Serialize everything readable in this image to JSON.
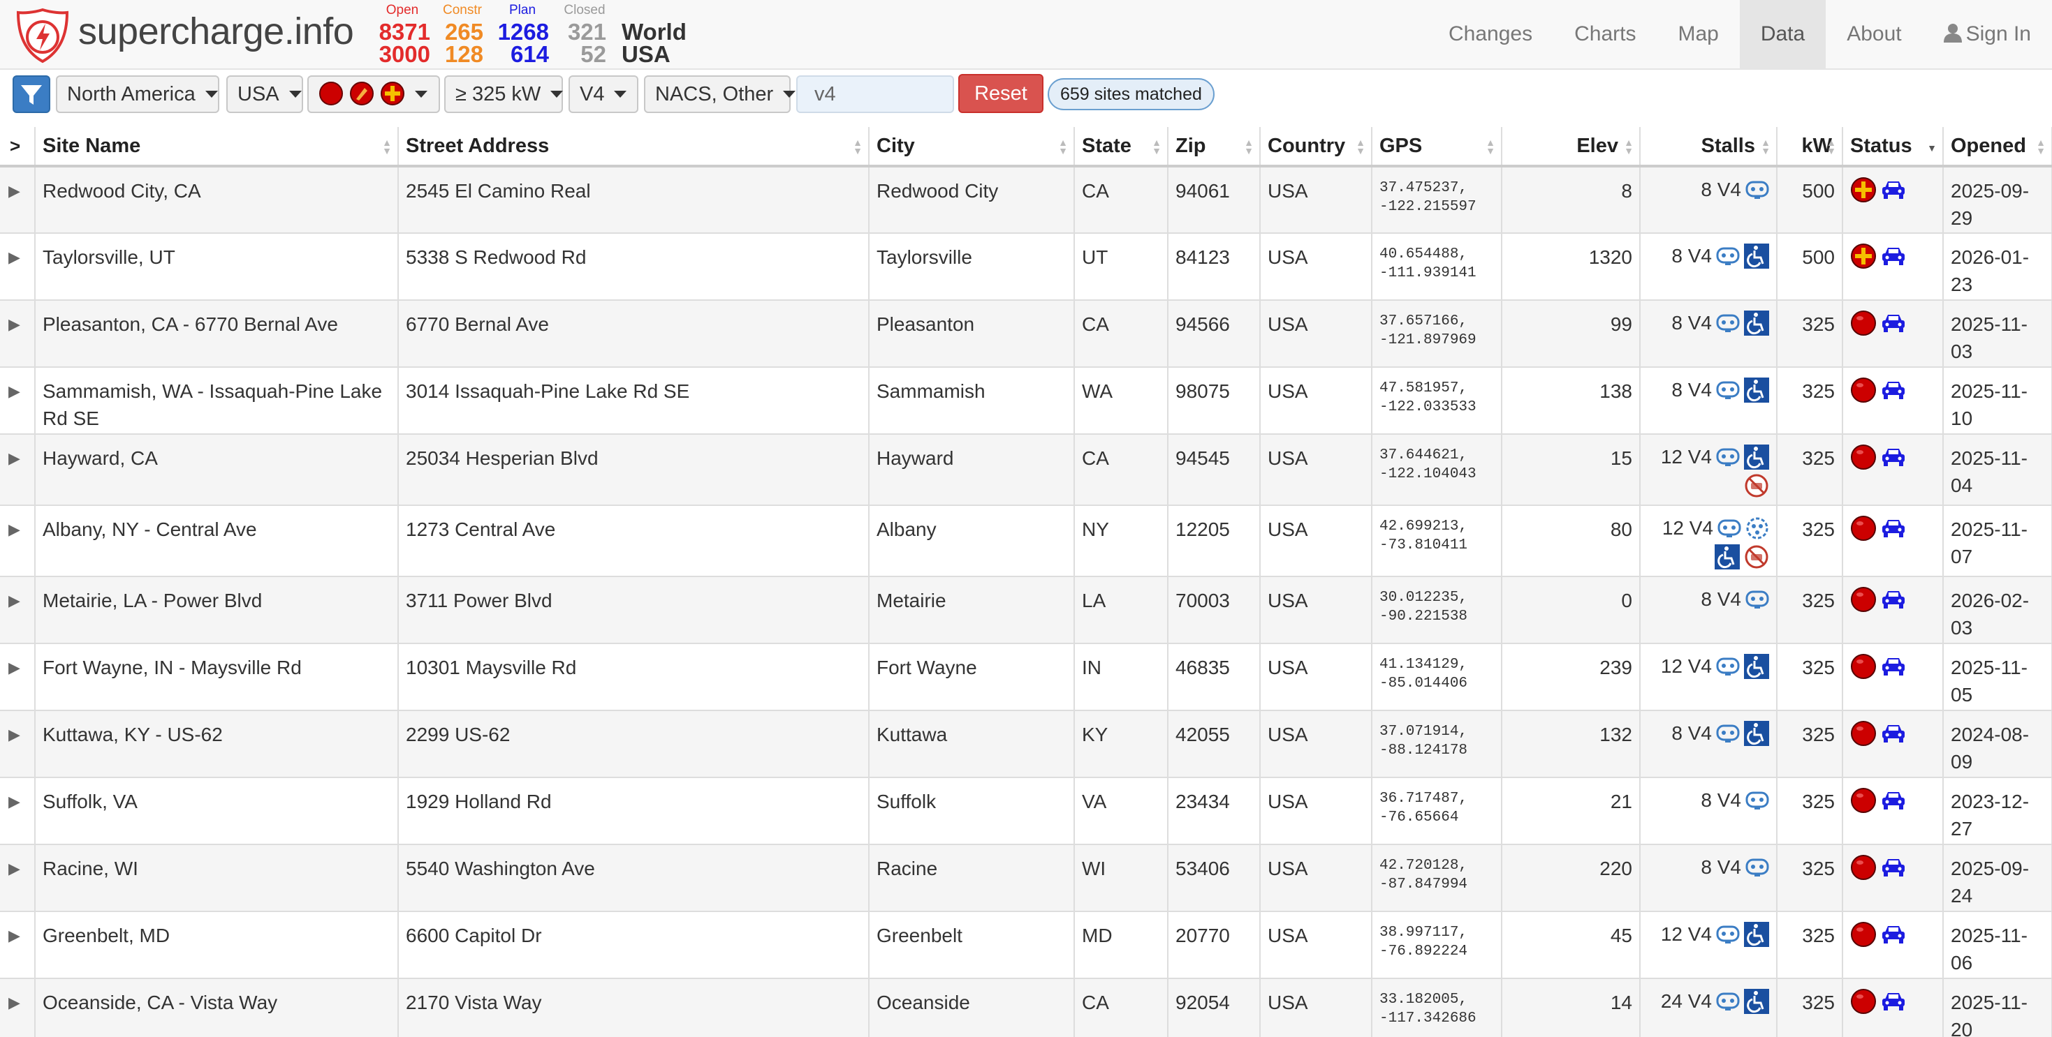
{
  "header": {
    "brand": "supercharge.info",
    "stats": {
      "open": {
        "label": "Open",
        "world": "8371",
        "usa": "3000"
      },
      "construction": {
        "label": "Constr",
        "world": "265",
        "usa": "128"
      },
      "plan": {
        "label": "Plan",
        "world": "1268",
        "usa": "614"
      },
      "closed": {
        "label": "Closed",
        "world": "321",
        "usa": "52"
      }
    },
    "region_world": "World",
    "region_usa": "USA",
    "nav": {
      "changes": "Changes",
      "charts": "Charts",
      "map": "Map",
      "data": "Data",
      "about": "About",
      "sign_in": "Sign In"
    }
  },
  "filters": {
    "continent": "North America",
    "country": "USA",
    "power": "≥ 325 kW",
    "stall_type": "V4",
    "plug": "NACS, Other",
    "search_value": "v4",
    "reset_label": "Reset",
    "matched": "659 sites matched"
  },
  "table": {
    "columns": {
      "site_name": "Site Name",
      "street": "Street Address",
      "city": "City",
      "state": "State",
      "zip": "Zip",
      "country": "Country",
      "gps": "GPS",
      "elev": "Elev",
      "stalls": "Stalls",
      "kw": "kW",
      "status": "Status",
      "opened": "Opened"
    },
    "rows": [
      {
        "name": "Redwood City, CA",
        "street": "2545 El Camino Real",
        "city": "Redwood City",
        "state": "CA",
        "zip": "94061",
        "country": "USA",
        "lat": "37.475237,",
        "lon": "-122.215597",
        "elev": "8",
        "stalls": "8 V4",
        "amen": [
          "trailer"
        ],
        "kw": "500",
        "status": "plus",
        "opened1": "2025-09-",
        "opened2": "29"
      },
      {
        "name": "Taylorsville, UT",
        "street": "5338 S Redwood Rd",
        "city": "Taylorsville",
        "state": "UT",
        "zip": "84123",
        "country": "USA",
        "lat": "40.654488,",
        "lon": "-111.939141",
        "elev": "1320",
        "stalls": "8 V4",
        "amen": [
          "trailer",
          "accessible"
        ],
        "kw": "500",
        "status": "plus",
        "opened1": "2026-01-",
        "opened2": "23"
      },
      {
        "name": "Pleasanton, CA - 6770 Bernal Ave",
        "street": "6770 Bernal Ave",
        "city": "Pleasanton",
        "state": "CA",
        "zip": "94566",
        "country": "USA",
        "lat": "37.657166,",
        "lon": "-121.897969",
        "elev": "99",
        "stalls": "8 V4",
        "amen": [
          "trailer",
          "accessible"
        ],
        "kw": "325",
        "status": "open",
        "opened1": "2025-11-",
        "opened2": "03"
      },
      {
        "name": "Sammamish, WA - Issaquah-Pine Lake Rd SE",
        "street": "3014 Issaquah-Pine Lake Rd SE",
        "city": "Sammamish",
        "state": "WA",
        "zip": "98075",
        "country": "USA",
        "lat": "47.581957,",
        "lon": "-122.033533",
        "elev": "138",
        "stalls": "8 V4",
        "amen": [
          "trailer",
          "accessible"
        ],
        "kw": "325",
        "status": "open",
        "opened1": "2025-11-",
        "opened2": "10"
      },
      {
        "name": "Hayward, CA",
        "street": "25034 Hesperian Blvd",
        "city": "Hayward",
        "state": "CA",
        "zip": "94545",
        "country": "USA",
        "lat": "37.644621,",
        "lon": "-122.104043",
        "elev": "15",
        "stalls": "12 V4",
        "amen": [
          "trailer",
          "accessible",
          "nopark"
        ],
        "kw": "325",
        "status": "open",
        "opened1": "2025-11-",
        "opened2": "04"
      },
      {
        "name": "Albany, NY - Central Ave",
        "street": "1273 Central Ave",
        "city": "Albany",
        "state": "NY",
        "zip": "12205",
        "country": "USA",
        "lat": "42.699213,",
        "lon": "-73.810411",
        "elev": "80",
        "stalls": "12 V4",
        "amen": [
          "trailer",
          "cable",
          "accessible",
          "nopark"
        ],
        "kw": "325",
        "status": "open",
        "opened1": "2025-11-",
        "opened2": "07"
      },
      {
        "name": "Metairie, LA - Power Blvd",
        "street": "3711 Power Blvd",
        "city": "Metairie",
        "state": "LA",
        "zip": "70003",
        "country": "USA",
        "lat": "30.012235,",
        "lon": "-90.221538",
        "elev": "0",
        "stalls": "8 V4",
        "amen": [
          "trailer"
        ],
        "kw": "325",
        "status": "open",
        "opened1": "2026-02-",
        "opened2": "03"
      },
      {
        "name": "Fort Wayne, IN - Maysville Rd",
        "street": "10301 Maysville Rd",
        "city": "Fort Wayne",
        "state": "IN",
        "zip": "46835",
        "country": "USA",
        "lat": "41.134129,",
        "lon": "-85.014406",
        "elev": "239",
        "stalls": "12 V4",
        "amen": [
          "trailer",
          "accessible"
        ],
        "kw": "325",
        "status": "open",
        "opened1": "2025-11-",
        "opened2": "05"
      },
      {
        "name": "Kuttawa, KY - US-62",
        "street": "2299 US-62",
        "city": "Kuttawa",
        "state": "KY",
        "zip": "42055",
        "country": "USA",
        "lat": "37.071914,",
        "lon": "-88.124178",
        "elev": "132",
        "stalls": "8 V4",
        "amen": [
          "trailer",
          "accessible"
        ],
        "kw": "325",
        "status": "open",
        "opened1": "2024-08-",
        "opened2": "09"
      },
      {
        "name": "Suffolk, VA",
        "street": "1929 Holland Rd",
        "city": "Suffolk",
        "state": "VA",
        "zip": "23434",
        "country": "USA",
        "lat": "36.717487,",
        "lon": "-76.65664",
        "elev": "21",
        "stalls": "8 V4",
        "amen": [
          "trailer"
        ],
        "kw": "325",
        "status": "open",
        "opened1": "2023-12-",
        "opened2": "27"
      },
      {
        "name": "Racine, WI",
        "street": "5540 Washington Ave",
        "city": "Racine",
        "state": "WI",
        "zip": "53406",
        "country": "USA",
        "lat": "42.720128,",
        "lon": "-87.847994",
        "elev": "220",
        "stalls": "8 V4",
        "amen": [
          "trailer"
        ],
        "kw": "325",
        "status": "open",
        "opened1": "2025-09-",
        "opened2": "24"
      },
      {
        "name": "Greenbelt, MD",
        "street": "6600 Capitol Dr",
        "city": "Greenbelt",
        "state": "MD",
        "zip": "20770",
        "country": "USA",
        "lat": "38.997117,",
        "lon": "-76.892224",
        "elev": "45",
        "stalls": "12 V4",
        "amen": [
          "trailer",
          "accessible"
        ],
        "kw": "325",
        "status": "open",
        "opened1": "2025-11-",
        "opened2": "06"
      },
      {
        "name": "Oceanside, CA - Vista Way",
        "street": "2170 Vista Way",
        "city": "Oceanside",
        "state": "CA",
        "zip": "92054",
        "country": "USA",
        "lat": "33.182005,",
        "lon": "-117.342686",
        "elev": "14",
        "stalls": "24 V4",
        "amen": [
          "trailer",
          "accessible"
        ],
        "kw": "325",
        "status": "open",
        "opened1": "2025-11-",
        "opened2": "20"
      }
    ]
  },
  "colors": {
    "open": "#e32b2b",
    "construction": "#f08a24",
    "plan": "#1c1ce0",
    "closed": "#9a9a9a",
    "amenity_blue": "#3b7dc4",
    "reset": "#d9534f"
  },
  "icons": {
    "logo": "shield-bolt-icon",
    "filter": "funnel-icon",
    "user": "user-icon",
    "status_open": "red-dot-icon",
    "status_plus": "plus-dot-icon",
    "status_car": "car-icon",
    "amenity_trailer": "trailer-icon",
    "amenity_accessible": "wheelchair-icon",
    "amenity_cable": "cable-icon",
    "amenity_nopark": "no-parking-icon"
  }
}
